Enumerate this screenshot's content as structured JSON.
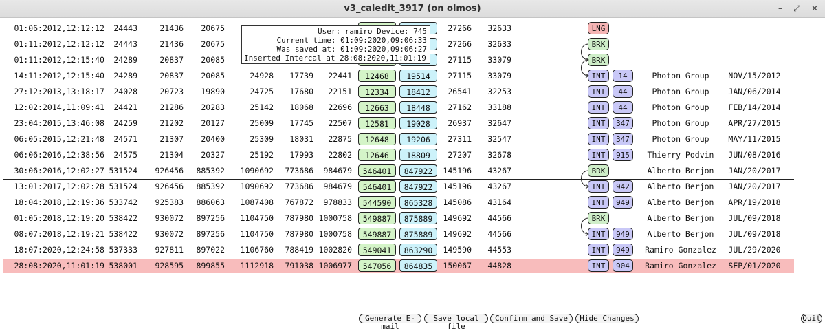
{
  "window": {
    "title": "v3_caledit_3917 (on olmos)",
    "minimize_glyph": "–",
    "maximize_glyph": "⤢",
    "close_glyph": "✕"
  },
  "colors": {
    "selected_row": "#f8bcbc",
    "green_box": "#d4f4c8",
    "blue_box": "#ccf2fa",
    "lng_tag": "#f5b4b4",
    "brk_tag": "#cfeec9",
    "int_tag": "#c9c8f7"
  },
  "tooltip": {
    "line1": "User: ramiro Device: 745",
    "line2": "Current time: 01:09:2020,09:06:33",
    "line3": "Was saved at: 01:09:2020,09:06:27",
    "line4": "Inserted Intercal at 28:08:2020,11:01:19"
  },
  "rows": [
    {
      "date": "01:06:2012,12:12:12",
      "v1": "24443",
      "v2": "21436",
      "v3": "20675",
      "v4": "",
      "v5": "",
      "v6": "",
      "g": "",
      "b": "19984",
      "v7": "27266",
      "v8": "32633",
      "tag": "LNG",
      "num": "",
      "user": "",
      "sdate": ""
    },
    {
      "date": "01:11:2012,12:12:12",
      "v1": "24443",
      "v2": "21436",
      "v3": "20675",
      "v4": "",
      "v5": "",
      "v6": "",
      "g": "",
      "b": "19984",
      "v7": "27266",
      "v8": "32633",
      "tag": "BRK",
      "num": "",
      "user": "",
      "sdate": ""
    },
    {
      "date": "01:11:2012,12:15:40",
      "v1": "24289",
      "v2": "20837",
      "v3": "20085",
      "v4": "",
      "v5": "",
      "v6": "",
      "g": "",
      "b": "19514",
      "v7": "27115",
      "v8": "33079",
      "tag": "BRK",
      "num": "",
      "user": "",
      "sdate": ""
    },
    {
      "date": "14:11:2012,12:15:40",
      "v1": "24289",
      "v2": "20837",
      "v3": "20085",
      "v4": "24928",
      "v5": "17739",
      "v6": "22441",
      "g": "12468",
      "b": "19514",
      "v7": "27115",
      "v8": "33079",
      "tag": "INT",
      "num": "14",
      "user": "Photon Group",
      "sdate": "NOV/15/2012"
    },
    {
      "date": "27:12:2013,13:18:17",
      "v1": "24028",
      "v2": "20723",
      "v3": "19890",
      "v4": "24725",
      "v5": "17680",
      "v6": "22151",
      "g": "12334",
      "b": "18412",
      "v7": "26541",
      "v8": "32253",
      "tag": "INT",
      "num": "44",
      "user": "Photon Group",
      "sdate": "JAN/06/2014"
    },
    {
      "date": "12:02:2014,11:09:41",
      "v1": "24421",
      "v2": "21286",
      "v3": "20283",
      "v4": "25142",
      "v5": "18068",
      "v6": "22696",
      "g": "12663",
      "b": "18448",
      "v7": "27162",
      "v8": "33188",
      "tag": "INT",
      "num": "44",
      "user": "Photon Group",
      "sdate": "FEB/14/2014"
    },
    {
      "date": "23:04:2015,13:46:08",
      "v1": "24259",
      "v2": "21202",
      "v3": "20127",
      "v4": "25009",
      "v5": "17745",
      "v6": "22507",
      "g": "12581",
      "b": "19028",
      "v7": "26937",
      "v8": "32647",
      "tag": "INT",
      "num": "347",
      "user": "Photon Group",
      "sdate": "APR/27/2015"
    },
    {
      "date": "06:05:2015,12:21:48",
      "v1": "24571",
      "v2": "21307",
      "v3": "20400",
      "v4": "25309",
      "v5": "18031",
      "v6": "22875",
      "g": "12648",
      "b": "19206",
      "v7": "27311",
      "v8": "32547",
      "tag": "INT",
      "num": "347",
      "user": "Photon Group",
      "sdate": "MAY/11/2015"
    },
    {
      "date": "06:06:2016,12:38:56",
      "v1": "24575",
      "v2": "21304",
      "v3": "20327",
      "v4": "25192",
      "v5": "17993",
      "v6": "22802",
      "g": "12646",
      "b": "18809",
      "v7": "27207",
      "v8": "32678",
      "tag": "INT",
      "num": "915",
      "user": "Thierry Podvin",
      "sdate": "JUN/08/2016"
    },
    {
      "date": "30:06:2016,12:02:27",
      "v1": "531524",
      "v2": "926456",
      "v3": "885392",
      "v4": "1090692",
      "v5": "773686",
      "v6": "984679",
      "g": "546401",
      "b": "847922",
      "v7": "145196",
      "v8": "43267",
      "tag": "BRK",
      "num": "",
      "user": "Alberto Berjon",
      "sdate": "JAN/20/2017"
    },
    {
      "date": "13:01:2017,12:02:28",
      "v1": "531524",
      "v2": "926456",
      "v3": "885392",
      "v4": "1090692",
      "v5": "773686",
      "v6": "984679",
      "g": "546401",
      "b": "847922",
      "v7": "145196",
      "v8": "43267",
      "tag": "INT",
      "num": "942",
      "user": "Alberto Berjon",
      "sdate": "JAN/20/2017"
    },
    {
      "date": "18:04:2018,12:19:36",
      "v1": "533742",
      "v2": "925383",
      "v3": "886063",
      "v4": "1087408",
      "v5": "767872",
      "v6": "978833",
      "g": "544590",
      "b": "865328",
      "v7": "145086",
      "v8": "43164",
      "tag": "INT",
      "num": "949",
      "user": "Alberto Berjon",
      "sdate": "APR/19/2018"
    },
    {
      "date": "01:05:2018,12:19:20",
      "v1": "538422",
      "v2": "930072",
      "v3": "897256",
      "v4": "1104750",
      "v5": "787980",
      "v6": "1000758",
      "g": "549887",
      "b": "875889",
      "v7": "149692",
      "v8": "44566",
      "tag": "BRK",
      "num": "",
      "user": "Alberto Berjon",
      "sdate": "JUL/09/2018"
    },
    {
      "date": "08:07:2018,12:19:21",
      "v1": "538422",
      "v2": "930072",
      "v3": "897256",
      "v4": "1104750",
      "v5": "787980",
      "v6": "1000758",
      "g": "549887",
      "b": "875889",
      "v7": "149692",
      "v8": "44566",
      "tag": "INT",
      "num": "949",
      "user": "Alberto Berjon",
      "sdate": "JUL/09/2018"
    },
    {
      "date": "18:07:2020,12:24:58",
      "v1": "537333",
      "v2": "927811",
      "v3": "897022",
      "v4": "1106760",
      "v5": "788419",
      "v6": "1002820",
      "g": "549041",
      "b": "863290",
      "v7": "149590",
      "v8": "44553",
      "tag": "INT",
      "num": "949",
      "user": "Ramiro Gonzalez",
      "sdate": "JUL/29/2020"
    },
    {
      "date": "28:08:2020,11:01:19",
      "v1": "538001",
      "v2": "928595",
      "v3": "899855",
      "v4": "1112918",
      "v5": "791038",
      "v6": "1006977",
      "g": "547056",
      "b": "864835",
      "v7": "150067",
      "v8": "44828",
      "tag": "INT",
      "num": "904",
      "user": "Ramiro Gonzalez",
      "sdate": "SEP/01/2020",
      "selected": true
    }
  ],
  "buttons": {
    "generate_email": "Generate E-mail",
    "save_local": "Save local file",
    "confirm_save": "Confirm and Save",
    "hide_changes": "Hide Changes",
    "quit": "Quit"
  }
}
